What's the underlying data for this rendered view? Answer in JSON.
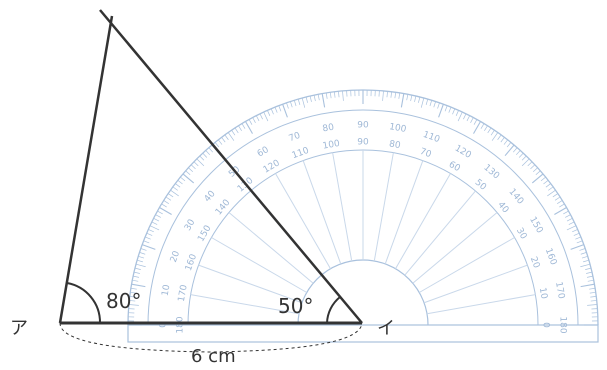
{
  "figure": {
    "vertex_a_label": "ア",
    "vertex_b_label": "イ",
    "angle_a_label": "80°",
    "angle_b_label": "50°",
    "base_length_label": "6 cm"
  },
  "protractor": {
    "outer_scale_labels": [
      "0",
      "10",
      "20",
      "30",
      "40",
      "50",
      "60",
      "70",
      "80",
      "90",
      "100",
      "110",
      "120",
      "130",
      "140",
      "150",
      "160",
      "170",
      "180"
    ],
    "inner_scale_labels": [
      "180",
      "170",
      "160",
      "150",
      "140",
      "130",
      "120",
      "110",
      "100",
      "90",
      "80",
      "70",
      "60",
      "50",
      "40",
      "30",
      "20",
      "10",
      "0"
    ]
  },
  "colors": {
    "line": "#333333",
    "protractor": "#a9c1dd",
    "protractor_light": "#c9d8ea"
  }
}
